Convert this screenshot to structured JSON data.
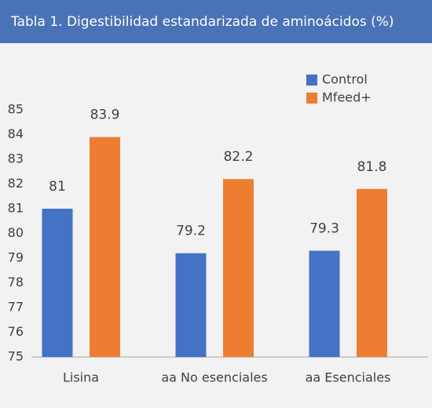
{
  "chart_data": {
    "type": "bar",
    "title": "Tabla 1. Digestibilidad estandarizada de aminoácidos (%)",
    "categories": [
      "Lisina",
      "aa No esenciales",
      "aa Esenciales"
    ],
    "series": [
      {
        "name": "Control",
        "color": "#4472c4",
        "values": [
          81,
          79.2,
          79.3
        ]
      },
      {
        "name": "Mfeed+",
        "color": "#ed7d31",
        "values": [
          83.9,
          82.2,
          81.8
        ]
      }
    ],
    "ylim": [
      75,
      85
    ],
    "yticks": [
      75,
      76,
      77,
      78,
      79,
      80,
      81,
      82,
      83,
      84,
      85
    ],
    "grid": false,
    "legend": "top-right"
  }
}
